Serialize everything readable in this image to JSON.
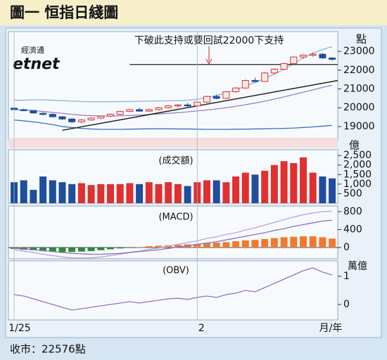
{
  "header": {
    "title": "圖一 恒指日綫圖"
  },
  "footer": {
    "text": "收市：22576點"
  },
  "chart_data": [
    {
      "type": "candlestick",
      "unit": "點",
      "watermark_top": "經濟通",
      "watermark": "etnet",
      "annotation": "下破此支持或要回試22000下支持",
      "up_color": "#e03030",
      "down_color": "#1f4e9c",
      "ylim": [
        18250,
        24050
      ],
      "yticks": [
        19000,
        20000,
        21000,
        22000,
        23000
      ],
      "support_line": [
        18800,
        21450
      ],
      "support_color": "#222222",
      "resistance_line": 22300,
      "ohlc": [
        [
          19980,
          20020,
          19880,
          19900
        ],
        [
          19900,
          19950,
          19820,
          19850
        ],
        [
          19850,
          19880,
          19700,
          19720
        ],
        [
          19700,
          19760,
          19600,
          19650
        ],
        [
          19650,
          19700,
          19480,
          19520
        ],
        [
          19520,
          19560,
          19350,
          19400
        ],
        [
          19400,
          19450,
          19200,
          19250
        ],
        [
          19250,
          19400,
          19180,
          19350
        ],
        [
          19350,
          19500,
          19300,
          19450
        ],
        [
          19450,
          19600,
          19400,
          19550
        ],
        [
          19550,
          19700,
          19500,
          19650
        ],
        [
          19650,
          19850,
          19600,
          19800
        ],
        [
          19800,
          19950,
          19750,
          19900
        ],
        [
          19900,
          20000,
          19780,
          19820
        ],
        [
          19820,
          19950,
          19760,
          19900
        ],
        [
          19900,
          20050,
          19850,
          20000
        ],
        [
          20000,
          20150,
          19950,
          20100
        ],
        [
          20100,
          20200,
          20020,
          20150
        ],
        [
          20150,
          20250,
          20050,
          20100
        ],
        [
          20100,
          20350,
          20080,
          20300
        ],
        [
          20300,
          20650,
          20250,
          20600
        ],
        [
          20600,
          20700,
          20450,
          20500
        ],
        [
          20500,
          20900,
          20480,
          20850
        ],
        [
          20850,
          21100,
          20800,
          21050
        ],
        [
          21050,
          21500,
          21000,
          21450
        ],
        [
          21450,
          21600,
          21350,
          21400
        ],
        [
          21400,
          21900,
          21380,
          21850
        ],
        [
          21850,
          22100,
          21800,
          22050
        ],
        [
          22050,
          22400,
          22000,
          22350
        ],
        [
          22350,
          22750,
          22300,
          22700
        ],
        [
          22700,
          22850,
          22600,
          22800
        ],
        [
          22800,
          22950,
          22700,
          22850
        ],
        [
          22850,
          22900,
          22600,
          22650
        ],
        [
          22650,
          22700,
          22500,
          22576
        ]
      ],
      "series": [
        {
          "color": "#8ab4d8",
          "values": [
            20400,
            20400,
            20420,
            20420,
            20400,
            20380,
            20350,
            20330,
            20320,
            20320,
            20320,
            20330,
            20330,
            20340,
            20350,
            20360,
            20370,
            20380,
            20400,
            20450,
            20550,
            20650,
            20800,
            20950,
            21150,
            21350,
            21550,
            21800,
            22050,
            22350,
            22650,
            22900,
            23100,
            23250
          ]
        },
        {
          "color": "#9a7fc0",
          "values": [
            19900,
            19880,
            19850,
            19800,
            19750,
            19700,
            19650,
            19600,
            19580,
            19560,
            19560,
            19570,
            19590,
            19610,
            19640,
            19670,
            19700,
            19740,
            19780,
            19830,
            19880,
            19940,
            20000,
            20080,
            20160,
            20250,
            20350,
            20460,
            20580,
            20700,
            20830,
            20950,
            21080,
            21200
          ]
        },
        {
          "color": "#3b6fc0",
          "values": [
            19350,
            19300,
            19250,
            19180,
            19100,
            19000,
            18950,
            18900,
            18870,
            18850,
            18850,
            18850,
            18860,
            18870,
            18880,
            18880,
            18880,
            18870,
            18870,
            18860,
            18850,
            18850,
            18850,
            18860,
            18860,
            18870,
            18880,
            18890,
            18900,
            18920,
            18950,
            18980,
            19020,
            19060
          ]
        }
      ]
    },
    {
      "type": "bar",
      "title": "(成交額)",
      "unit": "億",
      "ylim": [
        0,
        2800
      ],
      "yticks": [
        500,
        {
          "value": 1000,
          "label": "1,000"
        },
        {
          "value": 1500,
          "label": "1,500"
        },
        {
          "value": 2000,
          "label": "2,000"
        },
        {
          "value": 2500,
          "label": "2,500"
        }
      ],
      "values": [
        1100,
        1200,
        700,
        1400,
        1200,
        1100,
        1000,
        1050,
        950,
        1000,
        1000,
        1000,
        1050,
        1000,
        1100,
        1000,
        1100,
        1000,
        900,
        1100,
        1200,
        1200,
        1100,
        1400,
        1600,
        1500,
        1700,
        2000,
        2200,
        2100,
        2400,
        1600,
        1400,
        1300
      ]
    },
    {
      "type": "macd",
      "title": "(MACD)",
      "ylim": [
        -250,
        925
      ],
      "yticks": [
        0,
        400,
        800
      ],
      "positive_color": "#f07a30",
      "negative_color": "#2e8b3a",
      "histogram": [
        -30,
        -50,
        -60,
        -80,
        -90,
        -100,
        -100,
        -90,
        -80,
        -60,
        -40,
        -20,
        0,
        10,
        30,
        40,
        50,
        60,
        70,
        80,
        100,
        110,
        120,
        140,
        160,
        170,
        190,
        210,
        230,
        240,
        250,
        250,
        230,
        200
      ],
      "series": [
        {
          "color": "#b7a3d8",
          "values": [
            -50,
            -80,
            -110,
            -150,
            -180,
            -210,
            -230,
            -230,
            -230,
            -210,
            -180,
            -150,
            -110,
            -80,
            -40,
            -10,
            30,
            70,
            110,
            150,
            200,
            240,
            290,
            330,
            390,
            440,
            500,
            560,
            620,
            680,
            730,
            770,
            800,
            810
          ]
        },
        {
          "color": "#8d6cc0",
          "values": [
            -20,
            -30,
            -50,
            -70,
            -90,
            -110,
            -130,
            -140,
            -150,
            -150,
            -140,
            -130,
            -110,
            -90,
            -70,
            -50,
            -20,
            10,
            40,
            70,
            100,
            130,
            170,
            210,
            250,
            290,
            330,
            380,
            420,
            470,
            510,
            550,
            590,
            610
          ]
        }
      ]
    },
    {
      "type": "line",
      "title": "(OBV)",
      "unit": "萬億",
      "xlabel": "月/年",
      "ylim": [
        -0.55,
        1.55
      ],
      "yticks": [
        0,
        1
      ],
      "categories": [
        "1/25",
        null,
        null,
        null,
        null,
        null,
        null,
        null,
        null,
        null,
        null,
        null,
        null,
        null,
        null,
        null,
        null,
        null,
        null,
        "2",
        null,
        null,
        null,
        null,
        null,
        null,
        null,
        null,
        null,
        null,
        null,
        null,
        null,
        null
      ],
      "series": [
        {
          "color": "#9a6fc0",
          "values": [
            0.35,
            0.3,
            0.2,
            0.1,
            0.0,
            -0.1,
            -0.2,
            -0.15,
            -0.1,
            -0.05,
            0.0,
            0.05,
            0.1,
            0.05,
            0.1,
            0.15,
            0.2,
            0.22,
            0.18,
            0.25,
            0.3,
            0.25,
            0.35,
            0.4,
            0.5,
            0.45,
            0.6,
            0.75,
            0.9,
            1.05,
            1.2,
            1.3,
            1.15,
            1.05
          ]
        }
      ]
    }
  ]
}
